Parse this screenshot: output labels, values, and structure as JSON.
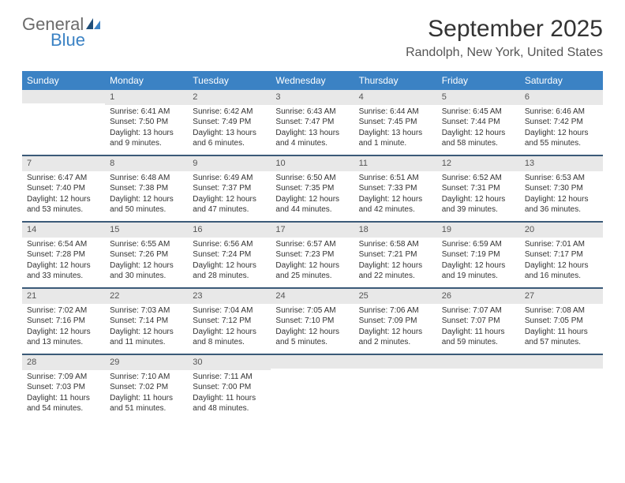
{
  "logo": {
    "word1": "General",
    "word2": "Blue",
    "word1_color": "#6b6b6b",
    "word2_color": "#3b82c4"
  },
  "title": "September 2025",
  "location": "Randolph, New York, United States",
  "header_bg": "#3b82c4",
  "header_fg": "#ffffff",
  "daynum_bg": "#e8e8e8",
  "week_border": "#3b5a78",
  "day_names": [
    "Sunday",
    "Monday",
    "Tuesday",
    "Wednesday",
    "Thursday",
    "Friday",
    "Saturday"
  ],
  "weeks": [
    [
      {
        "n": "",
        "sr": "",
        "ss": "",
        "dl": ""
      },
      {
        "n": "1",
        "sr": "6:41 AM",
        "ss": "7:50 PM",
        "dl": "13 hours and 9 minutes."
      },
      {
        "n": "2",
        "sr": "6:42 AM",
        "ss": "7:49 PM",
        "dl": "13 hours and 6 minutes."
      },
      {
        "n": "3",
        "sr": "6:43 AM",
        "ss": "7:47 PM",
        "dl": "13 hours and 4 minutes."
      },
      {
        "n": "4",
        "sr": "6:44 AM",
        "ss": "7:45 PM",
        "dl": "13 hours and 1 minute."
      },
      {
        "n": "5",
        "sr": "6:45 AM",
        "ss": "7:44 PM",
        "dl": "12 hours and 58 minutes."
      },
      {
        "n": "6",
        "sr": "6:46 AM",
        "ss": "7:42 PM",
        "dl": "12 hours and 55 minutes."
      }
    ],
    [
      {
        "n": "7",
        "sr": "6:47 AM",
        "ss": "7:40 PM",
        "dl": "12 hours and 53 minutes."
      },
      {
        "n": "8",
        "sr": "6:48 AM",
        "ss": "7:38 PM",
        "dl": "12 hours and 50 minutes."
      },
      {
        "n": "9",
        "sr": "6:49 AM",
        "ss": "7:37 PM",
        "dl": "12 hours and 47 minutes."
      },
      {
        "n": "10",
        "sr": "6:50 AM",
        "ss": "7:35 PM",
        "dl": "12 hours and 44 minutes."
      },
      {
        "n": "11",
        "sr": "6:51 AM",
        "ss": "7:33 PM",
        "dl": "12 hours and 42 minutes."
      },
      {
        "n": "12",
        "sr": "6:52 AM",
        "ss": "7:31 PM",
        "dl": "12 hours and 39 minutes."
      },
      {
        "n": "13",
        "sr": "6:53 AM",
        "ss": "7:30 PM",
        "dl": "12 hours and 36 minutes."
      }
    ],
    [
      {
        "n": "14",
        "sr": "6:54 AM",
        "ss": "7:28 PM",
        "dl": "12 hours and 33 minutes."
      },
      {
        "n": "15",
        "sr": "6:55 AM",
        "ss": "7:26 PM",
        "dl": "12 hours and 30 minutes."
      },
      {
        "n": "16",
        "sr": "6:56 AM",
        "ss": "7:24 PM",
        "dl": "12 hours and 28 minutes."
      },
      {
        "n": "17",
        "sr": "6:57 AM",
        "ss": "7:23 PM",
        "dl": "12 hours and 25 minutes."
      },
      {
        "n": "18",
        "sr": "6:58 AM",
        "ss": "7:21 PM",
        "dl": "12 hours and 22 minutes."
      },
      {
        "n": "19",
        "sr": "6:59 AM",
        "ss": "7:19 PM",
        "dl": "12 hours and 19 minutes."
      },
      {
        "n": "20",
        "sr": "7:01 AM",
        "ss": "7:17 PM",
        "dl": "12 hours and 16 minutes."
      }
    ],
    [
      {
        "n": "21",
        "sr": "7:02 AM",
        "ss": "7:16 PM",
        "dl": "12 hours and 13 minutes."
      },
      {
        "n": "22",
        "sr": "7:03 AM",
        "ss": "7:14 PM",
        "dl": "12 hours and 11 minutes."
      },
      {
        "n": "23",
        "sr": "7:04 AM",
        "ss": "7:12 PM",
        "dl": "12 hours and 8 minutes."
      },
      {
        "n": "24",
        "sr": "7:05 AM",
        "ss": "7:10 PM",
        "dl": "12 hours and 5 minutes."
      },
      {
        "n": "25",
        "sr": "7:06 AM",
        "ss": "7:09 PM",
        "dl": "12 hours and 2 minutes."
      },
      {
        "n": "26",
        "sr": "7:07 AM",
        "ss": "7:07 PM",
        "dl": "11 hours and 59 minutes."
      },
      {
        "n": "27",
        "sr": "7:08 AM",
        "ss": "7:05 PM",
        "dl": "11 hours and 57 minutes."
      }
    ],
    [
      {
        "n": "28",
        "sr": "7:09 AM",
        "ss": "7:03 PM",
        "dl": "11 hours and 54 minutes."
      },
      {
        "n": "29",
        "sr": "7:10 AM",
        "ss": "7:02 PM",
        "dl": "11 hours and 51 minutes."
      },
      {
        "n": "30",
        "sr": "7:11 AM",
        "ss": "7:00 PM",
        "dl": "11 hours and 48 minutes."
      },
      {
        "n": "",
        "sr": "",
        "ss": "",
        "dl": ""
      },
      {
        "n": "",
        "sr": "",
        "ss": "",
        "dl": ""
      },
      {
        "n": "",
        "sr": "",
        "ss": "",
        "dl": ""
      },
      {
        "n": "",
        "sr": "",
        "ss": "",
        "dl": ""
      }
    ]
  ],
  "labels": {
    "sunrise": "Sunrise:",
    "sunset": "Sunset:",
    "daylight": "Daylight:"
  }
}
